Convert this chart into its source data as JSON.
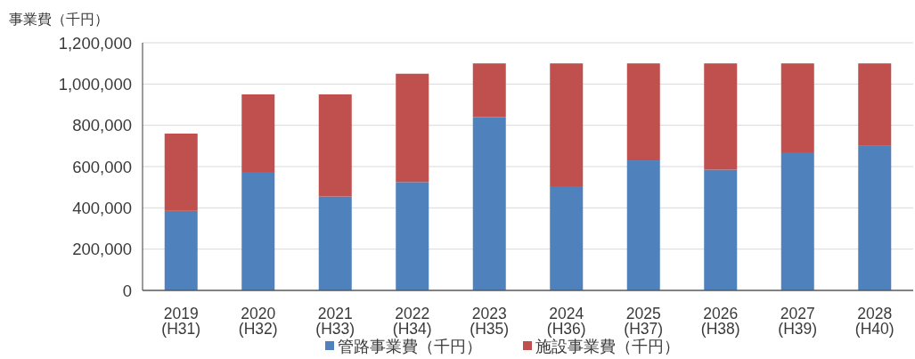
{
  "chart_data": {
    "type": "bar",
    "stacked": true,
    "ylabel": "事業費（千円）",
    "categories": [
      "2019\n(H31)",
      "2020\n(H32)",
      "2021\n(H33)",
      "2022\n(H34)",
      "2023\n(H35)",
      "2024\n(H36)",
      "2025\n(H37)",
      "2026\n(H38)",
      "2027\n(H39)",
      "2028\n(H40)"
    ],
    "series": [
      {
        "name": "管路事業費（千円）",
        "color": "#4f81bd",
        "values": [
          385000,
          570000,
          455000,
          525000,
          840000,
          505000,
          630000,
          585000,
          665000,
          700000
        ]
      },
      {
        "name": "施設事業費（千円）",
        "color": "#c0504d",
        "values": [
          375000,
          380000,
          495000,
          525000,
          260000,
          595000,
          470000,
          515000,
          435000,
          400000
        ]
      }
    ],
    "ylim": [
      0,
      1200000
    ],
    "yticks": [
      0,
      {
        "value": 200000,
        "label": "200,000"
      },
      {
        "value": 400000,
        "label": "400,000"
      },
      {
        "value": 600000,
        "label": "600,000"
      },
      {
        "value": 800000,
        "label": "800,000"
      },
      {
        "value": 1000000,
        "label": "1,000,000"
      },
      {
        "value": 1200000,
        "label": "1,200,000"
      }
    ],
    "grid": "y",
    "legend": "bottom"
  }
}
